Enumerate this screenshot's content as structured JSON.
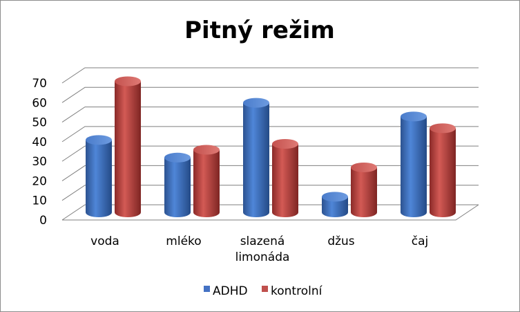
{
  "chart_data": {
    "type": "bar",
    "title": "Pitný režim",
    "xlabel": "",
    "ylabel": "",
    "categories": [
      [
        "voda"
      ],
      [
        "mléko"
      ],
      [
        "slazená",
        "limonáda"
      ],
      [
        "džus"
      ],
      [
        "čaj"
      ]
    ],
    "ylim": [
      0,
      70
    ],
    "yticks": [
      0,
      10,
      20,
      30,
      40,
      50,
      60,
      70
    ],
    "grid": true,
    "legend": "bottom",
    "series": [
      {
        "name": "ADHD",
        "color": "#4472C4",
        "values": [
          37,
          28,
          56,
          8,
          49
        ]
      },
      {
        "name": "kontrolní",
        "color": "#C0504D",
        "values": [
          67,
          32,
          35,
          23,
          43
        ]
      }
    ]
  }
}
